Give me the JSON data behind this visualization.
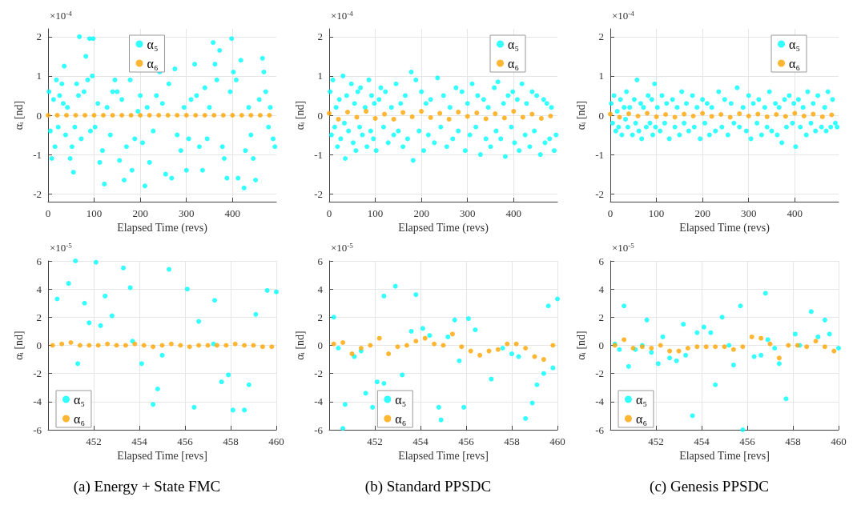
{
  "chart_data": [
    {
      "type": "scatter",
      "xlabel": "Elapsed Time (revs)",
      "ylabel": "αᵢ [nd]",
      "annotations": [
        "×10$^{-4}$"
      ],
      "xlim": [
        0,
        495
      ],
      "xticks": [
        0,
        100,
        200,
        300,
        400
      ],
      "ylim": [
        -2.2,
        2.2
      ],
      "yticks": [
        -2,
        -1,
        0,
        1,
        2
      ],
      "grid": true,
      "legend": "top",
      "marker": "circle",
      "series": [
        {
          "name": "α₅",
          "color": "#00ffff",
          "x": [
            2,
            5,
            8,
            12,
            15,
            18,
            22,
            25,
            30,
            33,
            35,
            38,
            42,
            48,
            52,
            55,
            58,
            62,
            66,
            68,
            72,
            78,
            82,
            86,
            90,
            92,
            96,
            98,
            102,
            108,
            112,
            118,
            122,
            128,
            135,
            140,
            145,
            150,
            155,
            160,
            165,
            170,
            178,
            182,
            188,
            195,
            200,
            205,
            210,
            215,
            220,
            228,
            235,
            242,
            248,
            255,
            262,
            268,
            275,
            280,
            288,
            295,
            300,
            305,
            310,
            318,
            322,
            328,
            335,
            340,
            345,
            350,
            358,
            362,
            366,
            372,
            378,
            382,
            388,
            395,
            398,
            402,
            408,
            412,
            418,
            425,
            428,
            435,
            440,
            445,
            450,
            458,
            465,
            468,
            472,
            478,
            482,
            488,
            492
          ],
          "values": [
            0.6,
            -0.4,
            -1.1,
            0.4,
            -0.8,
            0.9,
            -0.3,
            0.5,
            0.8,
            0.3,
            1.25,
            -0.5,
            0.2,
            -1.1,
            -0.8,
            -1.45,
            -0.3,
            0.8,
            0.5,
            2.0,
            -0.6,
            0.6,
            1.5,
            0.9,
            1.95,
            -0.4,
            1.0,
            1.95,
            -0.3,
            0.3,
            -1.2,
            -0.9,
            -1.75,
            0.2,
            -0.5,
            0.6,
            0.9,
            0.6,
            -1.15,
            0.4,
            -1.65,
            -0.8,
            0.9,
            -1.4,
            -0.6,
            0.1,
            0.5,
            -0.7,
            -1.8,
            0.2,
            -1.2,
            -0.4,
            0.5,
            1.1,
            0.3,
            -1.5,
            0.8,
            -1.6,
            1.18,
            -0.5,
            -0.9,
            0.2,
            -1.4,
            -0.6,
            0.4,
            1.3,
            0.5,
            -0.8,
            -1.4,
            0.7,
            -0.6,
            0.2,
            1.85,
            1.3,
            0.9,
            1.65,
            -0.8,
            -1.1,
            -1.6,
            0.6,
            1.95,
            1.1,
            0.9,
            -1.6,
            1.4,
            -1.85,
            -0.9,
            0.2,
            -0.5,
            -1.1,
            -1.65,
            0.4,
            1.45,
            1.1,
            0.6,
            -0.3,
            0.2,
            -0.6,
            -0.8
          ]
        },
        {
          "name": "α₆",
          "color": "#ffa500",
          "x": [
            0,
            20,
            40,
            60,
            80,
            100,
            120,
            140,
            160,
            180,
            200,
            220,
            240,
            260,
            280,
            300,
            320,
            340,
            360,
            380,
            400,
            420,
            440,
            460,
            480
          ],
          "values": [
            0,
            0,
            0,
            0,
            0,
            0,
            0,
            0,
            0,
            0,
            0,
            0,
            0,
            0,
            0,
            0,
            0,
            0,
            0,
            0,
            0,
            0,
            0,
            0,
            0
          ]
        }
      ]
    },
    {
      "type": "scatter",
      "xlabel": "Elapsed Time (revs)",
      "ylabel": "αᵢ [nd]",
      "annotations": [
        "×10$^{-4}$"
      ],
      "xlim": [
        0,
        495
      ],
      "xticks": [
        0,
        100,
        200,
        300,
        400
      ],
      "ylim": [
        -2.2,
        2.2
      ],
      "yticks": [
        -2,
        -1,
        0,
        1,
        2
      ],
      "grid": true,
      "legend": "top right",
      "marker": "circle",
      "series": [
        {
          "name": "α₅",
          "color": "#00ffff",
          "x": [
            2,
            5,
            8,
            12,
            15,
            18,
            22,
            25,
            30,
            33,
            35,
            38,
            42,
            48,
            52,
            55,
            58,
            62,
            66,
            68,
            72,
            78,
            82,
            86,
            90,
            92,
            96,
            98,
            102,
            108,
            112,
            118,
            122,
            128,
            135,
            140,
            145,
            150,
            155,
            160,
            165,
            170,
            178,
            182,
            188,
            195,
            200,
            205,
            210,
            215,
            220,
            228,
            235,
            242,
            248,
            255,
            262,
            268,
            275,
            280,
            288,
            295,
            300,
            305,
            310,
            318,
            322,
            328,
            335,
            340,
            345,
            350,
            358,
            362,
            366,
            372,
            378,
            382,
            388,
            395,
            398,
            402,
            408,
            412,
            418,
            425,
            428,
            435,
            440,
            445,
            450,
            458,
            465,
            468,
            472,
            478,
            482,
            488,
            492
          ],
          "values": [
            0.6,
            -0.5,
            0.9,
            -0.3,
            0.2,
            -0.8,
            0.4,
            -0.6,
            1.0,
            -0.2,
            -1.1,
            0.5,
            -0.4,
            0.8,
            -0.7,
            0.3,
            -0.9,
            0.6,
            -0.3,
            0.7,
            -0.5,
            0.2,
            -0.8,
            0.9,
            -0.4,
            0.5,
            -0.6,
            0.3,
            -0.9,
            0.4,
            0.7,
            -0.3,
            0.6,
            -0.7,
            0.2,
            -0.5,
            0.8,
            -0.4,
            0.3,
            -0.8,
            0.5,
            -0.6,
            1.1,
            -1.15,
            0.9,
            -0.4,
            0.6,
            -0.9,
            0.3,
            -0.5,
            0.4,
            -0.7,
            0.95,
            -0.3,
            0.5,
            -0.8,
            0.2,
            -0.6,
            0.7,
            -0.4,
            0.6,
            -0.9,
            0.3,
            -0.5,
            0.8,
            -0.3,
            0.5,
            -1.0,
            0.4,
            -0.6,
            0.2,
            -0.8,
            0.7,
            -0.4,
            0.85,
            -0.6,
            0.3,
            -1.05,
            0.5,
            -0.3,
            0.6,
            -0.7,
            0.4,
            -0.9,
            0.8,
            -0.5,
            0.3,
            -0.8,
            0.6,
            -0.4,
            0.5,
            -1.0,
            0.4,
            -0.7,
            0.3,
            -0.6,
            0.2,
            -0.9,
            -0.5
          ]
        },
        {
          "name": "α₆",
          "color": "#ffa500",
          "x": [
            0,
            20,
            40,
            60,
            80,
            100,
            120,
            140,
            160,
            180,
            200,
            220,
            240,
            260,
            280,
            300,
            320,
            340,
            360,
            380,
            400,
            420,
            440,
            460,
            480
          ],
          "values": [
            0.05,
            -0.1,
            0.08,
            -0.05,
            0.1,
            -0.08,
            0.03,
            -0.1,
            0.07,
            -0.04,
            0.1,
            -0.06,
            0.05,
            -0.1,
            0.08,
            -0.03,
            0.06,
            -0.09,
            0.04,
            -0.07,
            0.1,
            -0.05,
            0.03,
            -0.08,
            -0.02
          ]
        }
      ]
    },
    {
      "type": "scatter",
      "xlabel": "Elapsed Time (revs)",
      "ylabel": "αᵢ [nd]",
      "annotations": [
        "×10$^{-4}$"
      ],
      "xlim": [
        0,
        495
      ],
      "xticks": [
        0,
        100,
        200,
        300,
        400
      ],
      "ylim": [
        -2.2,
        2.2
      ],
      "yticks": [
        -2,
        -1,
        0,
        1,
        2
      ],
      "grid": true,
      "legend": "top right",
      "marker": "circle",
      "series": [
        {
          "name": "α₅",
          "color": "#00ffff",
          "x": [
            2,
            5,
            8,
            12,
            15,
            18,
            22,
            25,
            30,
            33,
            35,
            38,
            42,
            48,
            52,
            55,
            58,
            62,
            66,
            68,
            72,
            78,
            82,
            86,
            90,
            92,
            96,
            98,
            102,
            108,
            112,
            118,
            122,
            128,
            135,
            140,
            145,
            150,
            155,
            160,
            165,
            170,
            178,
            182,
            188,
            195,
            200,
            205,
            210,
            215,
            220,
            228,
            235,
            242,
            248,
            255,
            262,
            268,
            275,
            280,
            288,
            295,
            300,
            305,
            310,
            318,
            322,
            328,
            335,
            340,
            345,
            350,
            358,
            362,
            366,
            372,
            378,
            382,
            388,
            395,
            398,
            402,
            408,
            412,
            418,
            425,
            428,
            435,
            440,
            445,
            450,
            458,
            465,
            468,
            472,
            478,
            482,
            488,
            492
          ],
          "values": [
            0.3,
            -0.2,
            0.5,
            -0.4,
            0.1,
            -0.3,
            0.4,
            -0.5,
            0.2,
            -0.1,
            0.6,
            -0.3,
            0.2,
            -0.5,
            0.4,
            -0.2,
            0.9,
            -0.4,
            0.3,
            -0.6,
            0.2,
            -0.3,
            0.5,
            -0.2,
            0.4,
            -0.5,
            0.8,
            -0.3,
            0.2,
            -0.4,
            0.5,
            -0.2,
            0.3,
            -0.6,
            0.4,
            -0.3,
            0.2,
            -0.5,
            0.6,
            -0.2,
            0.3,
            -0.4,
            0.5,
            -0.3,
            0.2,
            -0.6,
            0.4,
            -0.2,
            0.3,
            -0.5,
            0.2,
            -0.4,
            0.6,
            -0.3,
            0.4,
            -0.5,
            0.3,
            -0.2,
            0.7,
            -0.3,
            0.2,
            -0.4,
            0.5,
            -0.6,
            0.3,
            -0.2,
            0.4,
            -0.5,
            0.2,
            -0.3,
            0.6,
            -0.4,
            0.3,
            -0.5,
            0.2,
            -0.7,
            0.4,
            -0.3,
            0.5,
            -0.2,
            0.3,
            -0.8,
            0.4,
            -0.3,
            0.2,
            -0.5,
            0.6,
            -0.2,
            0.3,
            -0.4,
            0.5,
            -0.3,
            0.2,
            -0.4,
            0.6,
            -0.3,
            0.4,
            -0.2,
            -0.3
          ]
        },
        {
          "name": "α₆",
          "color": "#ffa500",
          "x": [
            0,
            20,
            40,
            60,
            80,
            100,
            120,
            140,
            160,
            180,
            200,
            220,
            240,
            260,
            280,
            300,
            320,
            340,
            360,
            380,
            400,
            420,
            440,
            460,
            480
          ],
          "values": [
            0.03,
            -0.05,
            0.04,
            -0.02,
            0.05,
            -0.04,
            0.02,
            -0.05,
            0.03,
            -0.02,
            0.05,
            -0.03,
            0.02,
            -0.05,
            0.04,
            -0.02,
            0.03,
            -0.04,
            0.02,
            -0.03,
            0.05,
            -0.02,
            0.03,
            -0.04,
            0.01
          ]
        }
      ]
    },
    {
      "type": "scatter",
      "xlabel": "Elapsed Time [revs]",
      "ylabel": "αᵢ [nd]",
      "annotations": [
        "×10$^{-5}$",
        "(a) Energy + State FMC"
      ],
      "xlim": [
        450,
        460
      ],
      "xticks": [
        452,
        454,
        456,
        458,
        460
      ],
      "ylim": [
        -6,
        6
      ],
      "yticks": [
        -6,
        -4,
        -2,
        0,
        2,
        4,
        6
      ],
      "grid": true,
      "legend": "bottom left",
      "marker": "circle",
      "series": [
        {
          "name": "α₅",
          "color": "#00ffff",
          "x": [
            450.4,
            450.9,
            451.2,
            451.3,
            451.6,
            451.8,
            452.1,
            452.3,
            452.5,
            452.8,
            453.3,
            453.7,
            453.6,
            454.1,
            454.6,
            454.8,
            455.0,
            455.3,
            456.1,
            456.4,
            456.6,
            457.25,
            457.3,
            457.6,
            457.9,
            458.1,
            458.6,
            458.8,
            459.1,
            459.6,
            460.0
          ],
          "values": [
            3.3,
            4.4,
            6.0,
            -1.3,
            3.0,
            1.6,
            5.9,
            1.4,
            3.5,
            2.1,
            5.5,
            0.3,
            4.1,
            -1.3,
            -4.2,
            -3.1,
            -0.7,
            5.4,
            4.0,
            -4.4,
            1.7,
            0.1,
            3.2,
            -2.6,
            -2.1,
            -4.6,
            -4.6,
            -2.8,
            2.2,
            3.9,
            3.8
          ]
        },
        {
          "name": "α₆",
          "color": "#ffa500",
          "x": [
            450.2,
            450.6,
            451.0,
            451.4,
            451.8,
            452.2,
            452.6,
            453.0,
            453.4,
            453.8,
            454.2,
            454.6,
            455.0,
            455.4,
            455.8,
            456.2,
            456.6,
            457.0,
            457.4,
            457.8,
            458.2,
            458.6,
            459.0,
            459.4,
            459.8
          ],
          "values": [
            0,
            0.1,
            0.2,
            0,
            0,
            0,
            0.1,
            0,
            0,
            0.1,
            0,
            -0.1,
            0,
            0.1,
            0,
            -0.1,
            0,
            0,
            0,
            0,
            0.1,
            0,
            0,
            -0.1,
            -0.1
          ]
        }
      ]
    },
    {
      "type": "scatter",
      "xlabel": "Elapsed Time [revs]",
      "ylabel": "αᵢ [nd]",
      "annotations": [
        "×10$^{-5}$",
        "(b) Standard PPSDC"
      ],
      "xlim": [
        450,
        460
      ],
      "xticks": [
        452,
        454,
        456,
        458,
        460
      ],
      "ylim": [
        -6,
        6
      ],
      "yticks": [
        -6,
        -4,
        -2,
        0,
        2,
        4,
        6
      ],
      "grid": true,
      "legend": "bottom",
      "marker": "circle",
      "series": [
        {
          "name": "α₅",
          "color": "#00ffff",
          "x": [
            450.2,
            450.4,
            450.7,
            450.6,
            451.1,
            451.4,
            451.6,
            451.9,
            452.1,
            452.4,
            452.4,
            452.9,
            453.2,
            453.6,
            453.8,
            454.1,
            454.4,
            454.8,
            454.9,
            455.2,
            455.5,
            455.7,
            455.9,
            456.1,
            456.4,
            457.1,
            457.6,
            458.0,
            458.3,
            458.6,
            458.9,
            459.1,
            459.4,
            459.6,
            459.8,
            460.0
          ],
          "values": [
            2.0,
            -0.2,
            -4.2,
            -5.9,
            -0.8,
            -0.4,
            -3.4,
            -4.4,
            -2.6,
            3.5,
            -2.7,
            4.2,
            -2.1,
            1.0,
            3.6,
            1.2,
            0.7,
            -4.4,
            -5.3,
            0.6,
            1.8,
            -1.1,
            -4.4,
            1.9,
            1.1,
            -2.4,
            -0.2,
            -0.6,
            -0.8,
            -5.2,
            -4.1,
            -2.8,
            -2.0,
            2.8,
            -1.6,
            3.3
          ]
        },
        {
          "name": "α₆",
          "color": "#ffa500",
          "x": [
            450.2,
            450.6,
            451.0,
            451.4,
            451.8,
            452.2,
            452.6,
            453.0,
            453.4,
            453.8,
            454.2,
            454.6,
            455.0,
            455.4,
            455.8,
            456.2,
            456.6,
            457.0,
            457.4,
            457.8,
            458.2,
            458.6,
            459.0,
            459.4,
            459.8
          ],
          "values": [
            0.1,
            0.2,
            -0.6,
            -0.2,
            0,
            0.5,
            -0.6,
            -0.1,
            0,
            0.3,
            0.5,
            0.1,
            0,
            0.8,
            -0.1,
            -0.4,
            -0.7,
            -0.4,
            -0.3,
            0.1,
            0.1,
            -0.2,
            -0.8,
            -1.0,
            0
          ]
        }
      ]
    },
    {
      "type": "scatter",
      "xlabel": "Elapsed Time [revs]",
      "ylabel": "αᵢ [nd]",
      "annotations": [
        "×10$^{-5}$",
        "(c) Genesis PPSDC"
      ],
      "xlim": [
        450,
        460
      ],
      "xticks": [
        452,
        454,
        456,
        458,
        460
      ],
      "ylim": [
        -6,
        6
      ],
      "yticks": [
        -6,
        -4,
        -2,
        0,
        2,
        4,
        6
      ],
      "grid": true,
      "legend": "bottom left",
      "marker": "circle",
      "series": [
        {
          "name": "α₅",
          "color": "#00ffff",
          "x": [
            450.2,
            450.4,
            450.6,
            450.8,
            451.1,
            451.4,
            451.6,
            451.8,
            452.1,
            452.3,
            452.6,
            452.9,
            453.2,
            453.3,
            453.6,
            453.8,
            454.1,
            454.4,
            454.6,
            454.9,
            455.2,
            455.4,
            455.7,
            455.8,
            456.3,
            456.6,
            456.9,
            456.8,
            457.2,
            457.4,
            457.7,
            458.1,
            458.3,
            458.8,
            459.1,
            459.4,
            459.6,
            460.0
          ],
          "values": [
            0.1,
            -0.3,
            2.8,
            -1.5,
            -0.3,
            0,
            1.8,
            -0.5,
            -1.3,
            0.6,
            -0.9,
            -1.1,
            1.5,
            -0.7,
            -5.0,
            0.9,
            1.3,
            0.9,
            -2.8,
            2.0,
            0,
            -1.4,
            2.8,
            -6.0,
            -0.8,
            -0.7,
            0.4,
            3.7,
            -0.2,
            -1.3,
            -3.8,
            0.8,
            0,
            2.4,
            0.6,
            1.8,
            0.8,
            -0.2
          ]
        },
        {
          "name": "α₆",
          "color": "#ffa500",
          "x": [
            450.2,
            450.6,
            451.0,
            451.4,
            451.8,
            452.2,
            452.6,
            453.0,
            453.4,
            453.8,
            454.2,
            454.6,
            455.0,
            455.4,
            455.8,
            456.2,
            456.6,
            457.0,
            457.4,
            457.8,
            458.2,
            458.6,
            459.0,
            459.4,
            459.8
          ],
          "values": [
            0,
            0.4,
            -0.2,
            -0.1,
            -0.2,
            0,
            -0.4,
            -0.4,
            -0.2,
            -0.1,
            -0.1,
            -0.1,
            -0.1,
            -0.3,
            -0.1,
            0.6,
            0.5,
            0.1,
            -0.9,
            0,
            0,
            -0.1,
            0.3,
            -0.1,
            -0.4
          ]
        }
      ]
    }
  ]
}
